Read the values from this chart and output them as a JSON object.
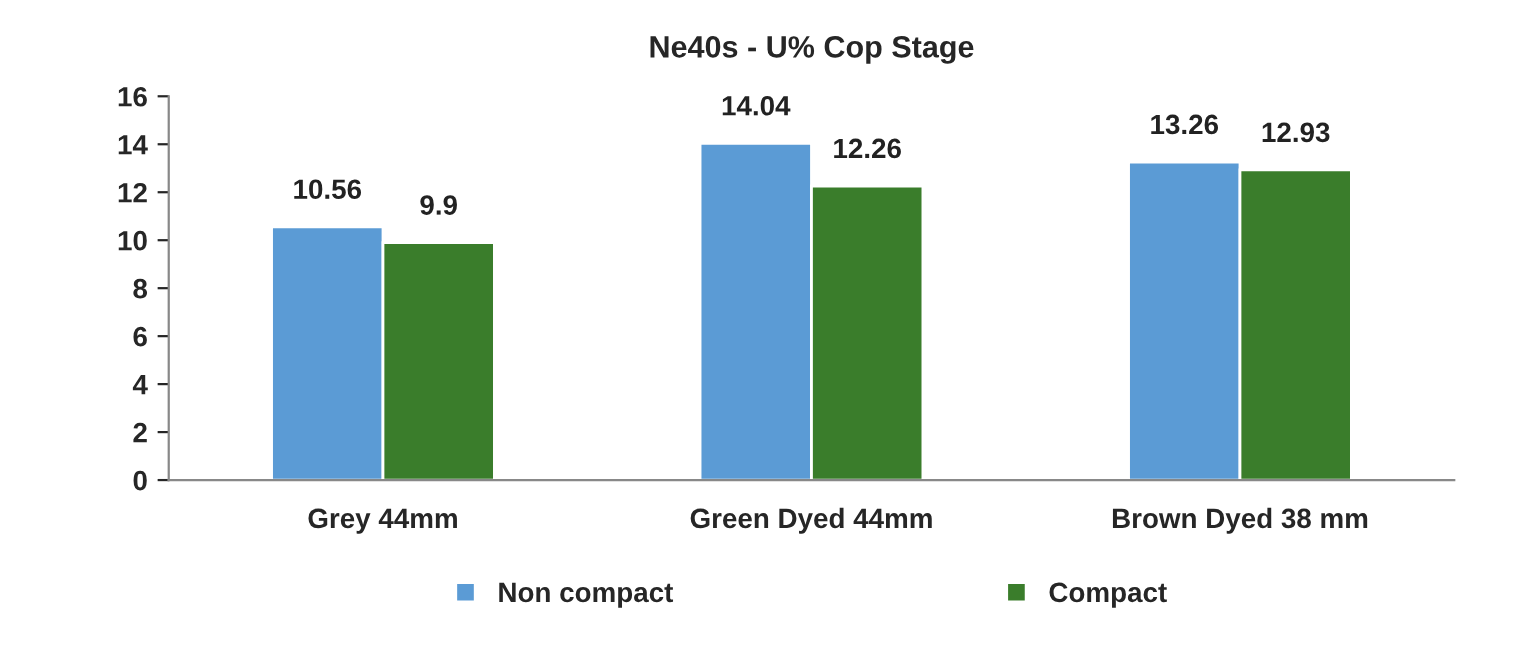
{
  "chart_data": {
    "type": "bar",
    "title": "Ne40s - U% Cop Stage",
    "categories": [
      "Grey 44mm",
      "Green Dyed 44mm",
      "Brown Dyed 38 mm"
    ],
    "series": [
      {
        "name": "Non compact",
        "color": "#5b9bd5",
        "values": [
          10.56,
          14.04,
          13.26
        ]
      },
      {
        "name": "Compact",
        "color": "#3a7d2b",
        "values": [
          9.9,
          12.26,
          12.93
        ]
      }
    ],
    "ylim": [
      0,
      16
    ],
    "yticks": [
      0,
      2,
      4,
      6,
      8,
      10,
      12,
      14,
      16
    ],
    "data_labels": true,
    "legend": "bottom",
    "grid": false
  }
}
